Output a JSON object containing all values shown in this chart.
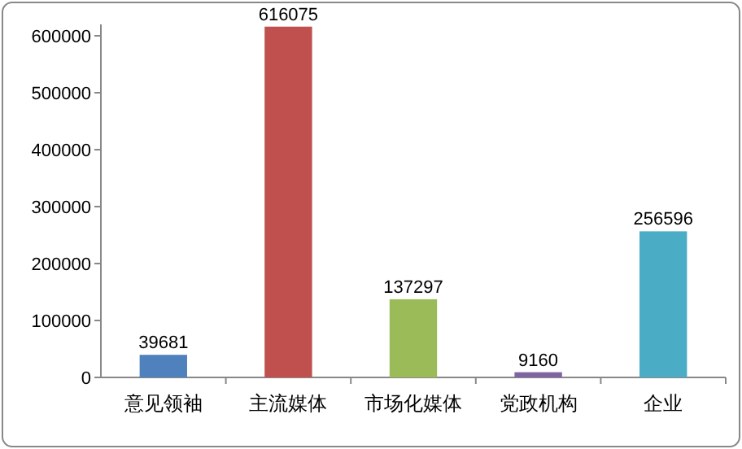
{
  "chart_data": {
    "type": "bar",
    "categories": [
      "意见领袖",
      "主流媒体",
      "市场化媒体",
      "党政机构",
      "企业"
    ],
    "values": [
      39681,
      616075,
      137297,
      9160,
      256596
    ],
    "colors": [
      "#4f81bd",
      "#c0504d",
      "#9bbb59",
      "#8064a2",
      "#4bacc6"
    ],
    "ylim": [
      0,
      620000
    ],
    "yticks": [
      0,
      100000,
      200000,
      300000,
      400000,
      500000,
      600000
    ],
    "data_labels": true,
    "grid": false
  }
}
